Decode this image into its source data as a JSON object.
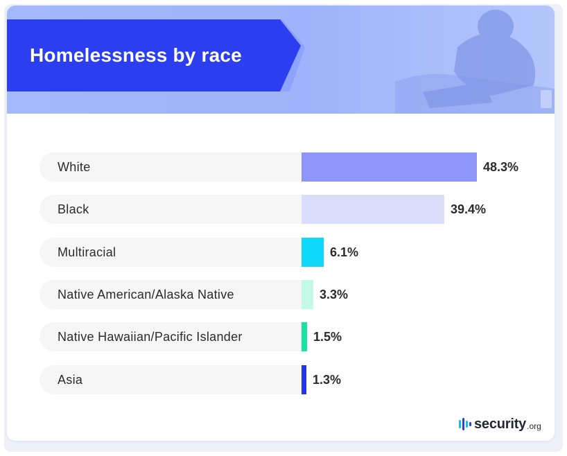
{
  "header": {
    "title": "Homelessness by race"
  },
  "colors": {
    "banner": "#a4b8fb",
    "title_tab": "#2b3ef0",
    "title_tab_accent": "#8ea2ff",
    "row_background": "#f6f6f6",
    "text": "#2b2b2b"
  },
  "chart_data": {
    "type": "bar",
    "orientation": "horizontal",
    "title": "Homelessness by race",
    "categories": [
      "White",
      "Black",
      "Multiracial",
      "Native American/Alaska Native",
      "Native Hawaiian/Pacific Islander",
      "Asia"
    ],
    "values": [
      48.3,
      39.4,
      6.1,
      3.3,
      1.5,
      1.3
    ],
    "value_labels": [
      "48.3%",
      "39.4%",
      "6.1%",
      "3.3%",
      "1.5%",
      "1.3%"
    ],
    "bar_colors": [
      "#9095fb",
      "#dcdcfb",
      "#0fd8fb",
      "#c3fae7",
      "#19e3a3",
      "#2233e8"
    ],
    "unit": "%",
    "xlim": [
      0,
      48.3
    ],
    "grid": false,
    "legend": "none"
  },
  "brand": {
    "icon": "security-org-logo-icon",
    "name": "security",
    "tld": ".org"
  }
}
